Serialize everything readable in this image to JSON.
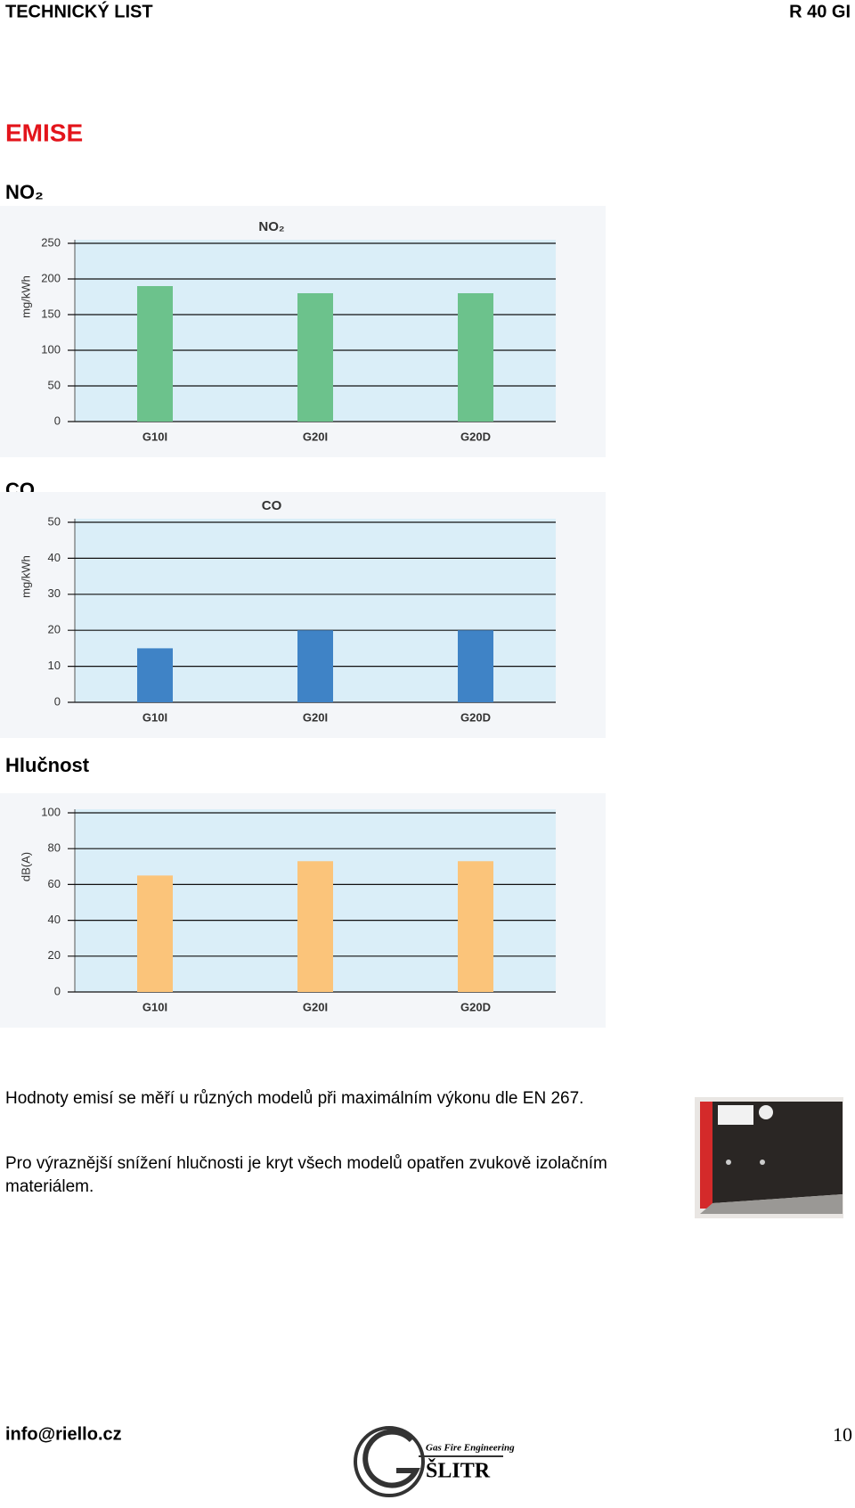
{
  "header": {
    "left": "TECHNICKÝ LIST",
    "right": "R 40 GI"
  },
  "heading": "EMISE",
  "sections": [
    "NO₂",
    "CO",
    "Hlučnost"
  ],
  "chart_data": [
    {
      "type": "bar",
      "title": "NO₂",
      "y_label": "mg/kWh",
      "categories": [
        "G10I",
        "G20I",
        "G20D"
      ],
      "values": [
        190,
        180,
        180
      ],
      "color": "#6cc28c",
      "ylim": [
        0,
        250
      ],
      "yticks": [
        0,
        50,
        100,
        150,
        200,
        250
      ],
      "grid": true
    },
    {
      "type": "bar",
      "title": "CO",
      "y_label": "mg/kWh",
      "categories": [
        "G10I",
        "G20I",
        "G20D"
      ],
      "values": [
        15,
        20,
        20
      ],
      "color": "#3f83c6",
      "ylim": [
        0,
        50
      ],
      "yticks": [
        0,
        10,
        20,
        30,
        40,
        50
      ],
      "grid": true
    },
    {
      "type": "bar",
      "y_label": "dB(A)",
      "categories": [
        "G10I",
        "G20I",
        "G20D"
      ],
      "values": [
        65,
        73,
        73
      ],
      "color": "#fbc47a",
      "ylim": [
        0,
        100
      ],
      "yticks": [
        0,
        20,
        40,
        60,
        80,
        100
      ],
      "grid": true
    }
  ],
  "paragraphs": [
    "Hodnoty emisí se měří u různých modelů při maximálním výkonu dle EN 267.",
    "Pro výraznější snížení hlučnosti je kryt všech modelů opatřen zvukově izolačním materiálem."
  ],
  "footer": {
    "email": "info@riello.cz",
    "logo_tagline": "Gas Fire Engineering",
    "logo_name": "ŠLITR",
    "page": "10"
  }
}
